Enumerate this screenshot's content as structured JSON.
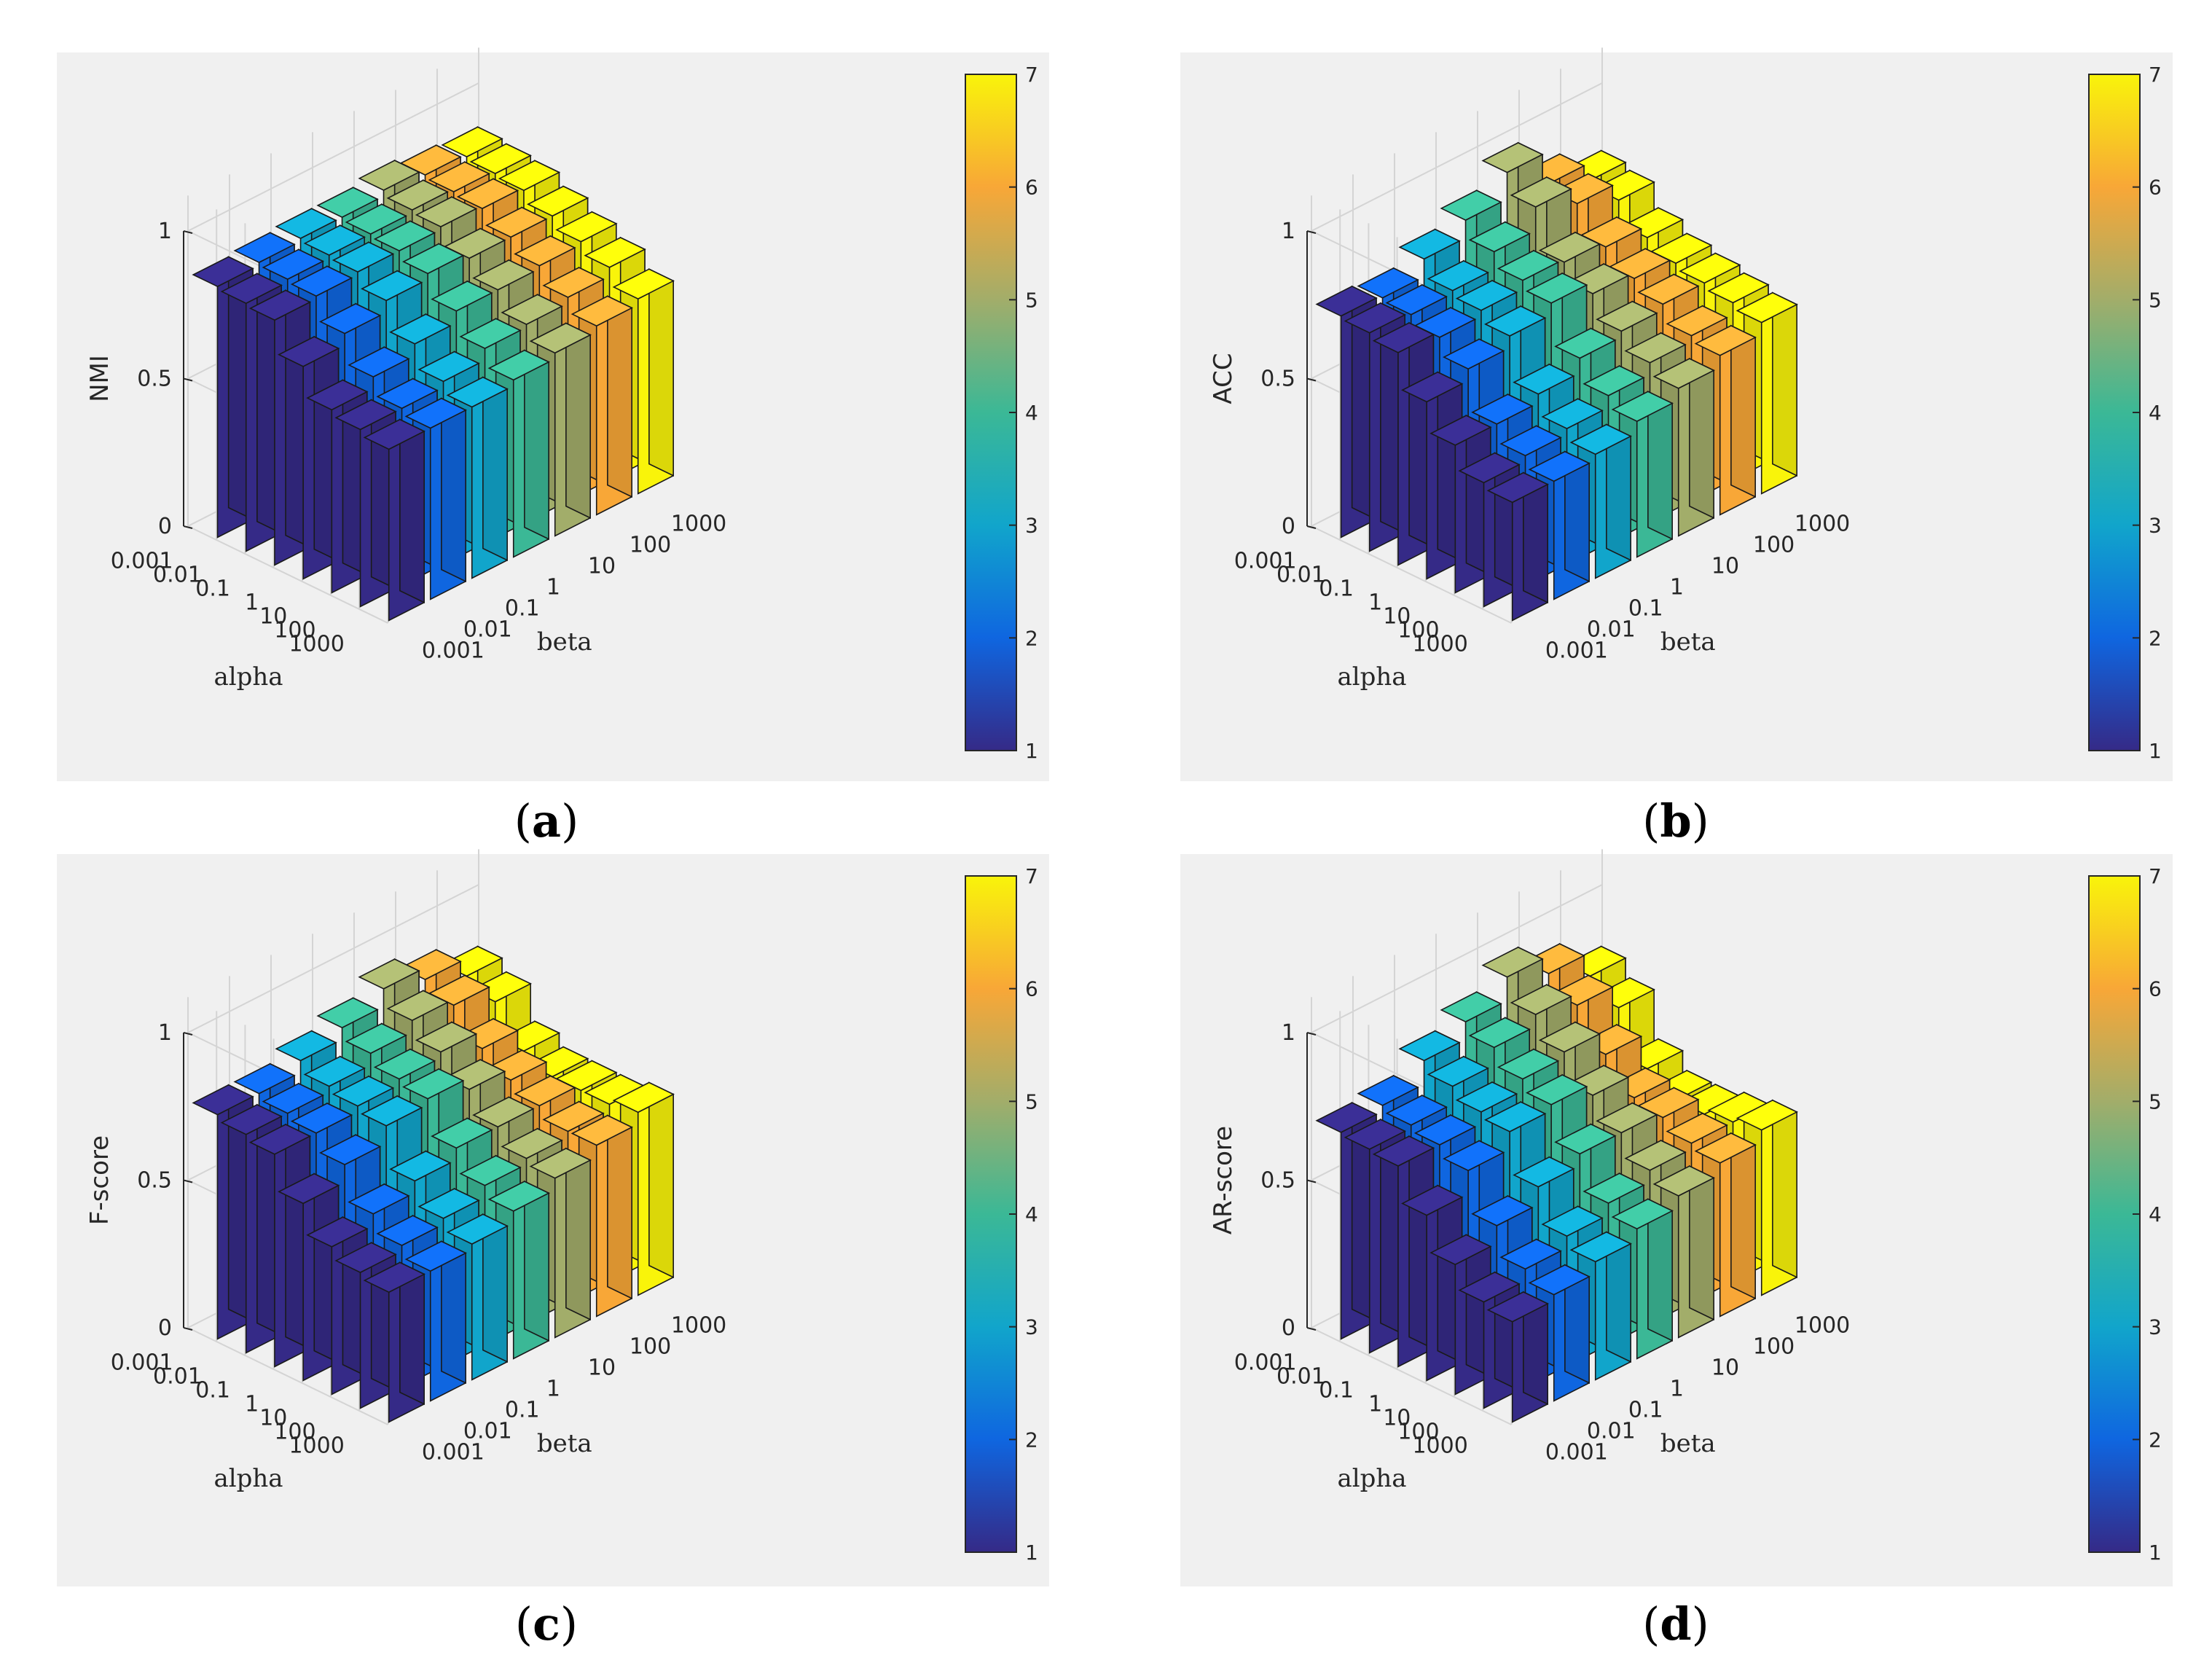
{
  "chart_data": [
    {
      "type": "bar3d",
      "panel": "a",
      "caption_letter": "a",
      "zlabel": "NMI",
      "xlabel": "alpha",
      "ylabel": "beta",
      "alpha_ticks": [
        "0.001",
        "0.01",
        "0.1",
        "1",
        "10",
        "100",
        "1000"
      ],
      "beta_ticks": [
        "0.001",
        "0.01",
        "0.1",
        "1",
        "10",
        "100",
        "1000"
      ],
      "z_ticks": [
        "0",
        "0.5",
        "1"
      ],
      "zlim": [
        0,
        1
      ],
      "colorbar_ticks": [
        "1",
        "2",
        "3",
        "4",
        "5",
        "6",
        "7"
      ],
      "colorbar_range": [
        1,
        7
      ],
      "values": [
        [
          0.85,
          0.86,
          0.87,
          0.87,
          0.89,
          0.87,
          0.86
        ],
        [
          0.84,
          0.85,
          0.86,
          0.86,
          0.87,
          0.86,
          0.85
        ],
        [
          0.83,
          0.84,
          0.85,
          0.85,
          0.86,
          0.85,
          0.84
        ],
        [
          0.72,
          0.76,
          0.8,
          0.82,
          0.8,
          0.8,
          0.8
        ],
        [
          0.62,
          0.66,
          0.7,
          0.74,
          0.74,
          0.75,
          0.76
        ],
        [
          0.6,
          0.6,
          0.62,
          0.66,
          0.67,
          0.69,
          0.72
        ],
        [
          0.58,
          0.58,
          0.58,
          0.6,
          0.62,
          0.64,
          0.66
        ]
      ]
    },
    {
      "type": "bar3d",
      "panel": "b",
      "caption_letter": "b",
      "zlabel": "ACC",
      "xlabel": "alpha",
      "ylabel": "beta",
      "alpha_ticks": [
        "0.001",
        "0.01",
        "0.1",
        "1",
        "10",
        "100",
        "1000"
      ],
      "beta_ticks": [
        "0.001",
        "0.01",
        "0.1",
        "1",
        "10",
        "100",
        "1000"
      ],
      "z_ticks": [
        "0",
        "0.5",
        "1"
      ],
      "zlim": [
        0,
        1
      ],
      "colorbar_ticks": [
        "1",
        "2",
        "3",
        "4",
        "5",
        "6",
        "7"
      ],
      "colorbar_range": [
        1,
        7
      ],
      "values": [
        [
          0.75,
          0.74,
          0.8,
          0.86,
          0.95,
          0.84,
          0.78
        ],
        [
          0.74,
          0.73,
          0.74,
          0.8,
          0.88,
          0.82,
          0.76
        ],
        [
          0.72,
          0.7,
          0.72,
          0.75,
          0.74,
          0.72,
          0.68
        ],
        [
          0.6,
          0.64,
          0.68,
          0.72,
          0.68,
          0.66,
          0.64
        ],
        [
          0.5,
          0.5,
          0.53,
          0.58,
          0.6,
          0.62,
          0.62
        ],
        [
          0.42,
          0.44,
          0.46,
          0.5,
          0.54,
          0.56,
          0.6
        ],
        [
          0.4,
          0.4,
          0.42,
          0.46,
          0.5,
          0.54,
          0.58
        ]
      ]
    },
    {
      "type": "bar3d",
      "panel": "c",
      "caption_letter": "c",
      "zlabel": "F-score",
      "xlabel": "alpha",
      "ylabel": "beta",
      "alpha_ticks": [
        "0.001",
        "0.01",
        "0.1",
        "1",
        "10",
        "100",
        "1000"
      ],
      "beta_ticks": [
        "0.001",
        "0.01",
        "0.1",
        "1",
        "10",
        "100",
        "1000"
      ],
      "z_ticks": [
        "0",
        "0.5",
        "1"
      ],
      "zlim": [
        0,
        1
      ],
      "colorbar_ticks": [
        "1",
        "2",
        "3",
        "4",
        "5",
        "6",
        "7"
      ],
      "colorbar_range": [
        1,
        7
      ],
      "values": [
        [
          0.76,
          0.76,
          0.8,
          0.84,
          0.9,
          0.86,
          0.8
        ],
        [
          0.74,
          0.74,
          0.76,
          0.8,
          0.84,
          0.82,
          0.76
        ],
        [
          0.72,
          0.72,
          0.74,
          0.76,
          0.78,
          0.72,
          0.64
        ],
        [
          0.6,
          0.66,
          0.72,
          0.74,
          0.7,
          0.66,
          0.6
        ],
        [
          0.5,
          0.54,
          0.58,
          0.62,
          0.62,
          0.62,
          0.6
        ],
        [
          0.46,
          0.48,
          0.5,
          0.54,
          0.56,
          0.58,
          0.6
        ],
        [
          0.44,
          0.44,
          0.46,
          0.5,
          0.54,
          0.58,
          0.62
        ]
      ]
    },
    {
      "type": "bar3d",
      "panel": "d",
      "caption_letter": "d",
      "zlabel": "AR-score",
      "xlabel": "alpha",
      "ylabel": "beta",
      "alpha_ticks": [
        "0.001",
        "0.01",
        "0.1",
        "1",
        "10",
        "100",
        "1000"
      ],
      "beta_ticks": [
        "0.001",
        "0.01",
        "0.1",
        "1",
        "10",
        "100",
        "1000"
      ],
      "z_ticks": [
        "0",
        "0.5",
        "1"
      ],
      "zlim": [
        0,
        1
      ],
      "colorbar_ticks": [
        "1",
        "2",
        "3",
        "4",
        "5",
        "6",
        "7"
      ],
      "colorbar_range": [
        1,
        7
      ],
      "values": [
        [
          0.7,
          0.72,
          0.8,
          0.86,
          0.94,
          0.88,
          0.8
        ],
        [
          0.69,
          0.7,
          0.76,
          0.82,
          0.86,
          0.82,
          0.74
        ],
        [
          0.68,
          0.68,
          0.72,
          0.76,
          0.78,
          0.7,
          0.58
        ],
        [
          0.56,
          0.64,
          0.7,
          0.72,
          0.68,
          0.6,
          0.52
        ],
        [
          0.44,
          0.5,
          0.56,
          0.6,
          0.6,
          0.58,
          0.52
        ],
        [
          0.36,
          0.4,
          0.44,
          0.48,
          0.52,
          0.54,
          0.54
        ],
        [
          0.34,
          0.36,
          0.4,
          0.44,
          0.48,
          0.52,
          0.56
        ]
      ]
    }
  ]
}
